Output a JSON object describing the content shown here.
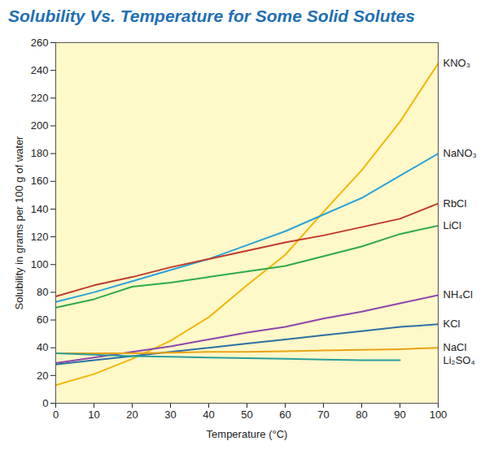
{
  "chart_data": {
    "type": "line",
    "title": "Solubility Vs. Temperature for Some Solid Solutes",
    "x_label": "Temperature (°C)",
    "y_label": "Solubility in grams per 100 g of water",
    "x": [
      0,
      10,
      20,
      30,
      40,
      50,
      60,
      70,
      80,
      90,
      100
    ],
    "xlim": [
      0,
      100
    ],
    "xticks": [
      0,
      10,
      20,
      30,
      40,
      50,
      60,
      70,
      80,
      90,
      100
    ],
    "ylim": [
      0,
      260
    ],
    "yticks": [
      0,
      20,
      40,
      60,
      80,
      100,
      120,
      140,
      160,
      180,
      200,
      220,
      240,
      260
    ],
    "grid": false,
    "series": [
      {
        "name": "KNO₃",
        "color": "#f2b705",
        "values": [
          13,
          21,
          32,
          45,
          62,
          85,
          107,
          138,
          168,
          203,
          245
        ]
      },
      {
        "name": "NaNO₃",
        "color": "#29a3dc",
        "values": [
          73,
          80,
          88,
          96,
          104,
          114,
          124,
          136,
          148,
          164,
          180
        ]
      },
      {
        "name": "RbCl",
        "color": "#c0392b",
        "values": [
          77,
          85,
          91,
          98,
          104,
          110,
          116,
          121,
          127,
          133,
          144
        ]
      },
      {
        "name": "LiCl",
        "color": "#2eaa4a",
        "values": [
          69,
          75,
          84,
          87,
          91,
          95,
          99,
          106,
          113,
          122,
          128
        ]
      },
      {
        "name": "NH₄Cl",
        "color": "#8e44ad",
        "values": [
          29,
          33,
          37,
          41,
          46,
          51,
          55,
          61,
          66,
          72,
          78
        ]
      },
      {
        "name": "KCl",
        "color": "#2c6fa5",
        "values": [
          28,
          31,
          34,
          37,
          40,
          43,
          46,
          49,
          52,
          55,
          57
        ]
      },
      {
        "name": "NaCl",
        "color": "#e8a317",
        "values": [
          36,
          36,
          36,
          36.5,
          37,
          37,
          37.5,
          38,
          38.5,
          39,
          40
        ]
      },
      {
        "name": "Li₂SO₄",
        "color": "#2a9d9d",
        "values": [
          36,
          35,
          34,
          33.5,
          33,
          32.5,
          32,
          31.5,
          31,
          31,
          null
        ]
      }
    ]
  }
}
